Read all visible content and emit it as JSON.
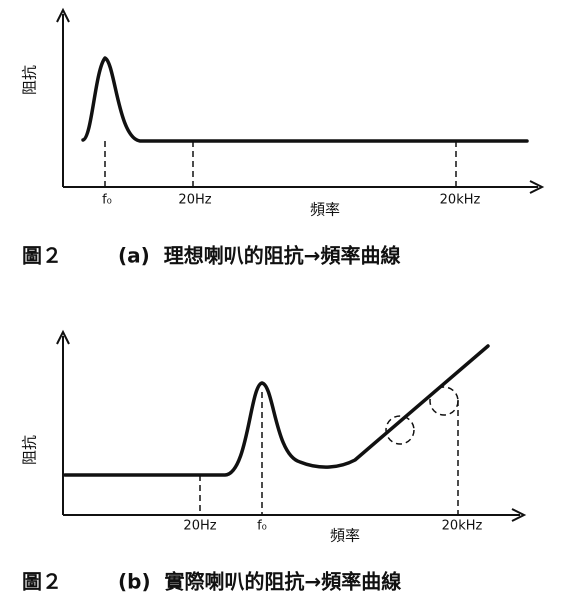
{
  "panels": [
    {
      "y_axis_label": "阻抗",
      "x_labels": [
        "f₀",
        "20Hz",
        "20kHz"
      ],
      "x_axis_label": "頻率",
      "figure": "圖２",
      "caption": "(a)  理想喇叭的阻抗→頻率曲線"
    },
    {
      "y_axis_label": "阻抗",
      "x_labels": [
        "20Hz",
        "f₀",
        "20kHz"
      ],
      "x_axis_label": "頻率",
      "figure": "圖２",
      "caption": "(b)  實際喇叭的阻抗→頻率曲線"
    }
  ]
}
